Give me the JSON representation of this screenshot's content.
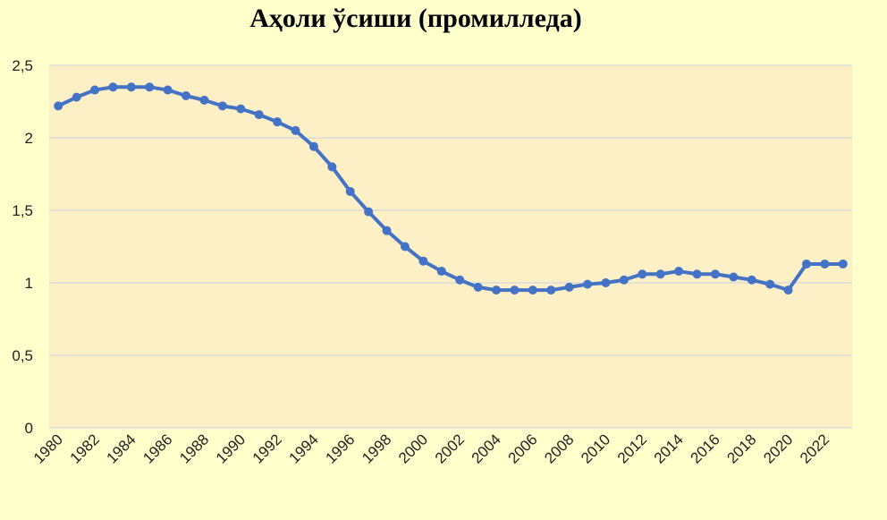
{
  "chart_data": {
    "type": "line",
    "title": "Аҳоли ўсиши (промилледа)",
    "categories": [
      "1980",
      null,
      "1982",
      null,
      "1984",
      null,
      "1986",
      null,
      "1988",
      null,
      "1990",
      null,
      "1992",
      null,
      "1994",
      null,
      "1996",
      null,
      "1998",
      null,
      "2000",
      null,
      "2002",
      null,
      "2004",
      null,
      "2006",
      null,
      "2008",
      null,
      "2010",
      null,
      "2012",
      null,
      "2014",
      null,
      "2016",
      null,
      "2018",
      null,
      "2020",
      null,
      "2022",
      null
    ],
    "values": [
      2.22,
      2.28,
      2.33,
      2.35,
      2.35,
      2.35,
      2.33,
      2.29,
      2.26,
      2.22,
      2.2,
      2.16,
      2.11,
      2.05,
      1.94,
      1.8,
      1.63,
      1.49,
      1.36,
      1.25,
      1.15,
      1.08,
      1.02,
      0.97,
      0.95,
      0.95,
      0.95,
      0.95,
      0.97,
      0.99,
      1.0,
      1.02,
      1.06,
      1.06,
      1.08,
      1.06,
      1.06,
      1.04,
      1.02,
      0.99,
      0.95,
      1.13,
      1.13,
      1.13
    ],
    "color": "#4472c4",
    "ylim": [
      0,
      2.5
    ],
    "yticks": [
      0,
      {
        "value": 0.5,
        "label": "0,5"
      },
      1,
      {
        "value": 1.5,
        "label": "1,5"
      },
      2,
      {
        "value": 2.5,
        "label": "2,5"
      }
    ],
    "grid": true
  }
}
